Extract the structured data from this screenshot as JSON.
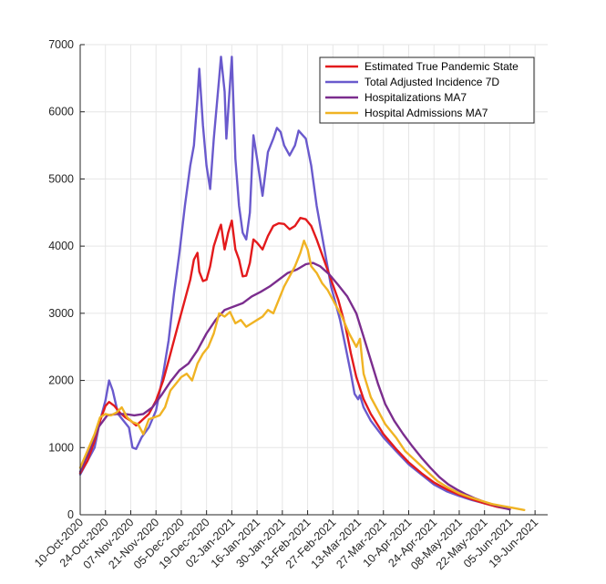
{
  "chart_data": {
    "type": "line",
    "title": "",
    "xlabel": "",
    "ylabel": "",
    "ylim": [
      0,
      7000
    ],
    "yticks": [
      0,
      1000,
      2000,
      3000,
      4000,
      5000,
      6000,
      7000
    ],
    "xlim": [
      "2020-10-10",
      "2021-06-26"
    ],
    "xticks": [
      "2020-10-10",
      "2020-10-24",
      "2020-11-07",
      "2020-11-21",
      "2020-12-05",
      "2020-12-19",
      "2021-01-02",
      "2021-01-16",
      "2021-01-30",
      "2021-02-13",
      "2021-02-27",
      "2021-03-13",
      "2021-03-27",
      "2021-04-10",
      "2021-04-24",
      "2021-05-08",
      "2021-05-22",
      "2021-06-05",
      "2021-06-19"
    ],
    "xtick_labels": [
      "10-Oct-2020",
      "24-Oct-2020",
      "07-Nov-2020",
      "21-Nov-2020",
      "05-Dec-2020",
      "19-Dec-2020",
      "02-Jan-2021",
      "16-Jan-2021",
      "30-Jan-2021",
      "13-Feb-2021",
      "27-Feb-2021",
      "13-Mar-2021",
      "27-Mar-2021",
      "10-Apr-2021",
      "24-Apr-2021",
      "08-May-2021",
      "22-May-2021",
      "05-Jun-2021",
      "19-Jun-2021"
    ],
    "grid": true,
    "legend_position": "top-right",
    "series": [
      {
        "name": "Total Adjusted Incidence 7D",
        "color": "#6a5acd",
        "points": [
          [
            "2020-10-10",
            600
          ],
          [
            "2020-10-14",
            800
          ],
          [
            "2020-10-18",
            1000
          ],
          [
            "2020-10-21",
            1400
          ],
          [
            "2020-10-24",
            1700
          ],
          [
            "2020-10-26",
            2000
          ],
          [
            "2020-10-28",
            1850
          ],
          [
            "2020-10-31",
            1500
          ],
          [
            "2020-11-03",
            1400
          ],
          [
            "2020-11-06",
            1300
          ],
          [
            "2020-11-08",
            1000
          ],
          [
            "2020-11-10",
            980
          ],
          [
            "2020-11-13",
            1150
          ],
          [
            "2020-11-17",
            1300
          ],
          [
            "2020-11-21",
            1550
          ],
          [
            "2020-11-25",
            2100
          ],
          [
            "2020-11-28",
            2600
          ],
          [
            "2020-12-01",
            3300
          ],
          [
            "2020-12-04",
            3900
          ],
          [
            "2020-12-07",
            4600
          ],
          [
            "2020-12-10",
            5200
          ],
          [
            "2020-12-12",
            5500
          ],
          [
            "2020-12-14",
            6200
          ],
          [
            "2020-12-15",
            6640
          ],
          [
            "2020-12-17",
            5800
          ],
          [
            "2020-12-19",
            5200
          ],
          [
            "2020-12-21",
            4850
          ],
          [
            "2020-12-23",
            5600
          ],
          [
            "2020-12-26",
            6500
          ],
          [
            "2020-12-27",
            6820
          ],
          [
            "2020-12-29",
            6300
          ],
          [
            "2020-12-30",
            5600
          ],
          [
            "2021-01-02",
            6820
          ],
          [
            "2021-01-04",
            5300
          ],
          [
            "2021-01-06",
            4600
          ],
          [
            "2021-01-08",
            4200
          ],
          [
            "2021-01-10",
            4100
          ],
          [
            "2021-01-12",
            4500
          ],
          [
            "2021-01-14",
            5650
          ],
          [
            "2021-01-16",
            5300
          ],
          [
            "2021-01-19",
            4750
          ],
          [
            "2021-01-22",
            5400
          ],
          [
            "2021-01-25",
            5600
          ],
          [
            "2021-01-27",
            5760
          ],
          [
            "2021-01-29",
            5700
          ],
          [
            "2021-01-31",
            5500
          ],
          [
            "2021-02-03",
            5350
          ],
          [
            "2021-02-06",
            5500
          ],
          [
            "2021-02-08",
            5720
          ],
          [
            "2021-02-12",
            5600
          ],
          [
            "2021-02-15",
            5200
          ],
          [
            "2021-02-18",
            4600
          ],
          [
            "2021-02-22",
            4000
          ],
          [
            "2021-02-26",
            3400
          ],
          [
            "2021-03-03",
            2900
          ],
          [
            "2021-03-06",
            2500
          ],
          [
            "2021-03-09",
            2100
          ],
          [
            "2021-03-11",
            1800
          ],
          [
            "2021-03-13",
            1720
          ],
          [
            "2021-03-14",
            1780
          ],
          [
            "2021-03-16",
            1600
          ],
          [
            "2021-03-20",
            1400
          ],
          [
            "2021-03-27",
            1150
          ],
          [
            "2021-04-03",
            950
          ],
          [
            "2021-04-10",
            750
          ],
          [
            "2021-04-17",
            600
          ],
          [
            "2021-04-24",
            450
          ],
          [
            "2021-05-01",
            350
          ],
          [
            "2021-05-08",
            280
          ],
          [
            "2021-05-15",
            220
          ],
          [
            "2021-05-22",
            170
          ],
          [
            "2021-05-29",
            120
          ],
          [
            "2021-06-05",
            80
          ]
        ]
      },
      {
        "name": "Estimated True Pandemic State",
        "color": "#e31a1c",
        "points": [
          [
            "2020-10-10",
            620
          ],
          [
            "2020-10-14",
            800
          ],
          [
            "2020-10-18",
            1100
          ],
          [
            "2020-10-21",
            1400
          ],
          [
            "2020-10-24",
            1620
          ],
          [
            "2020-10-26",
            1680
          ],
          [
            "2020-10-29",
            1620
          ],
          [
            "2020-11-01",
            1520
          ],
          [
            "2020-11-04",
            1450
          ],
          [
            "2020-11-07",
            1400
          ],
          [
            "2020-11-10",
            1330
          ],
          [
            "2020-11-13",
            1400
          ],
          [
            "2020-11-17",
            1500
          ],
          [
            "2020-11-21",
            1700
          ],
          [
            "2020-11-25",
            2000
          ],
          [
            "2020-11-28",
            2300
          ],
          [
            "2020-12-01",
            2600
          ],
          [
            "2020-12-04",
            2900
          ],
          [
            "2020-12-07",
            3200
          ],
          [
            "2020-12-10",
            3500
          ],
          [
            "2020-12-12",
            3800
          ],
          [
            "2020-12-14",
            3900
          ],
          [
            "2020-12-15",
            3620
          ],
          [
            "2020-12-17",
            3480
          ],
          [
            "2020-12-19",
            3500
          ],
          [
            "2020-12-21",
            3700
          ],
          [
            "2020-12-23",
            4000
          ],
          [
            "2020-12-26",
            4250
          ],
          [
            "2020-12-27",
            4320
          ],
          [
            "2020-12-29",
            3950
          ],
          [
            "2020-12-31",
            4200
          ],
          [
            "2021-01-02",
            4380
          ],
          [
            "2021-01-04",
            3950
          ],
          [
            "2021-01-06",
            3800
          ],
          [
            "2021-01-08",
            3550
          ],
          [
            "2021-01-10",
            3560
          ],
          [
            "2021-01-12",
            3750
          ],
          [
            "2021-01-14",
            4100
          ],
          [
            "2021-01-16",
            4050
          ],
          [
            "2021-01-19",
            3950
          ],
          [
            "2021-01-22",
            4150
          ],
          [
            "2021-01-25",
            4300
          ],
          [
            "2021-01-28",
            4340
          ],
          [
            "2021-01-31",
            4330
          ],
          [
            "2021-02-03",
            4250
          ],
          [
            "2021-02-06",
            4300
          ],
          [
            "2021-02-09",
            4420
          ],
          [
            "2021-02-12",
            4400
          ],
          [
            "2021-02-15",
            4300
          ],
          [
            "2021-02-18",
            4100
          ],
          [
            "2021-02-22",
            3800
          ],
          [
            "2021-02-26",
            3500
          ],
          [
            "2021-03-02",
            3200
          ],
          [
            "2021-03-06",
            2800
          ],
          [
            "2021-03-09",
            2400
          ],
          [
            "2021-03-12",
            2050
          ],
          [
            "2021-03-16",
            1720
          ],
          [
            "2021-03-20",
            1500
          ],
          [
            "2021-03-27",
            1200
          ],
          [
            "2021-04-03",
            980
          ],
          [
            "2021-04-10",
            780
          ],
          [
            "2021-04-17",
            620
          ],
          [
            "2021-04-24",
            480
          ],
          [
            "2021-05-01",
            380
          ],
          [
            "2021-05-08",
            300
          ],
          [
            "2021-05-15",
            230
          ],
          [
            "2021-05-22",
            170
          ],
          [
            "2021-05-29",
            120
          ],
          [
            "2021-06-05",
            85
          ]
        ]
      },
      {
        "name": "Hospitalizations MA7",
        "color": "#7b2d8e",
        "points": [
          [
            "2020-10-10",
            640
          ],
          [
            "2020-10-15",
            950
          ],
          [
            "2020-10-20",
            1300
          ],
          [
            "2020-10-25",
            1480
          ],
          [
            "2020-10-30",
            1500
          ],
          [
            "2020-11-04",
            1500
          ],
          [
            "2020-11-09",
            1480
          ],
          [
            "2020-11-14",
            1500
          ],
          [
            "2020-11-19",
            1600
          ],
          [
            "2020-11-24",
            1780
          ],
          [
            "2020-11-29",
            1980
          ],
          [
            "2020-12-04",
            2150
          ],
          [
            "2020-12-09",
            2250
          ],
          [
            "2020-12-14",
            2450
          ],
          [
            "2020-12-19",
            2700
          ],
          [
            "2020-12-24",
            2900
          ],
          [
            "2020-12-29",
            3050
          ],
          [
            "2021-01-03",
            3100
          ],
          [
            "2021-01-08",
            3150
          ],
          [
            "2021-01-13",
            3250
          ],
          [
            "2021-01-18",
            3320
          ],
          [
            "2021-01-23",
            3400
          ],
          [
            "2021-01-28",
            3500
          ],
          [
            "2021-02-02",
            3600
          ],
          [
            "2021-02-07",
            3650
          ],
          [
            "2021-02-12",
            3730
          ],
          [
            "2021-02-16",
            3750
          ],
          [
            "2021-02-20",
            3700
          ],
          [
            "2021-02-25",
            3580
          ],
          [
            "2021-03-02",
            3420
          ],
          [
            "2021-03-07",
            3250
          ],
          [
            "2021-03-12",
            3000
          ],
          [
            "2021-03-16",
            2650
          ],
          [
            "2021-03-20",
            2300
          ],
          [
            "2021-03-24",
            1950
          ],
          [
            "2021-03-28",
            1650
          ],
          [
            "2021-04-02",
            1400
          ],
          [
            "2021-04-07",
            1200
          ],
          [
            "2021-04-12",
            1020
          ],
          [
            "2021-04-17",
            850
          ],
          [
            "2021-04-22",
            700
          ],
          [
            "2021-04-27",
            560
          ],
          [
            "2021-05-02",
            450
          ],
          [
            "2021-05-07",
            370
          ],
          [
            "2021-05-12",
            300
          ],
          [
            "2021-05-17",
            240
          ],
          [
            "2021-05-22",
            190
          ],
          [
            "2021-05-27",
            150
          ],
          [
            "2021-06-01",
            110
          ],
          [
            "2021-06-05",
            80
          ]
        ]
      },
      {
        "name": "Hospital Admissions MA7",
        "color": "#f0b323",
        "points": [
          [
            "2020-10-10",
            700
          ],
          [
            "2020-10-14",
            950
          ],
          [
            "2020-10-18",
            1200
          ],
          [
            "2020-10-21",
            1450
          ],
          [
            "2020-10-24",
            1500
          ],
          [
            "2020-10-27",
            1480
          ],
          [
            "2020-10-30",
            1520
          ],
          [
            "2020-11-02",
            1600
          ],
          [
            "2020-11-05",
            1450
          ],
          [
            "2020-11-08",
            1380
          ],
          [
            "2020-11-11",
            1350
          ],
          [
            "2020-11-14",
            1200
          ],
          [
            "2020-11-17",
            1420
          ],
          [
            "2020-11-20",
            1450
          ],
          [
            "2020-11-23",
            1480
          ],
          [
            "2020-11-26",
            1600
          ],
          [
            "2020-11-29",
            1850
          ],
          [
            "2020-12-02",
            1950
          ],
          [
            "2020-12-05",
            2050
          ],
          [
            "2020-12-08",
            2100
          ],
          [
            "2020-12-11",
            2000
          ],
          [
            "2020-12-14",
            2250
          ],
          [
            "2020-12-17",
            2400
          ],
          [
            "2020-12-20",
            2500
          ],
          [
            "2020-12-23",
            2700
          ],
          [
            "2020-12-26",
            3000
          ],
          [
            "2020-12-29",
            2950
          ],
          [
            "2021-01-01",
            3020
          ],
          [
            "2021-01-04",
            2850
          ],
          [
            "2021-01-07",
            2900
          ],
          [
            "2021-01-10",
            2800
          ],
          [
            "2021-01-13",
            2850
          ],
          [
            "2021-01-16",
            2900
          ],
          [
            "2021-01-19",
            2950
          ],
          [
            "2021-01-22",
            3050
          ],
          [
            "2021-01-25",
            3000
          ],
          [
            "2021-01-28",
            3200
          ],
          [
            "2021-01-31",
            3400
          ],
          [
            "2021-02-03",
            3550
          ],
          [
            "2021-02-06",
            3700
          ],
          [
            "2021-02-09",
            3900
          ],
          [
            "2021-02-11",
            4080
          ],
          [
            "2021-02-13",
            3950
          ],
          [
            "2021-02-15",
            3700
          ],
          [
            "2021-02-18",
            3600
          ],
          [
            "2021-02-21",
            3450
          ],
          [
            "2021-02-24",
            3350
          ],
          [
            "2021-02-28",
            3150
          ],
          [
            "2021-03-04",
            2950
          ],
          [
            "2021-03-08",
            2700
          ],
          [
            "2021-03-12",
            2500
          ],
          [
            "2021-03-14",
            2620
          ],
          [
            "2021-03-16",
            2100
          ],
          [
            "2021-03-20",
            1750
          ],
          [
            "2021-03-24",
            1550
          ],
          [
            "2021-03-28",
            1350
          ],
          [
            "2021-04-03",
            1150
          ],
          [
            "2021-04-08",
            950
          ],
          [
            "2021-04-14",
            800
          ],
          [
            "2021-04-20",
            650
          ],
          [
            "2021-04-26",
            500
          ],
          [
            "2021-05-02",
            400
          ],
          [
            "2021-05-08",
            320
          ],
          [
            "2021-05-14",
            260
          ],
          [
            "2021-05-20",
            210
          ],
          [
            "2021-05-26",
            160
          ],
          [
            "2021-06-01",
            130
          ],
          [
            "2021-06-07",
            100
          ],
          [
            "2021-06-13",
            70
          ]
        ]
      }
    ],
    "legend_order": [
      "Estimated True Pandemic State",
      "Total Adjusted Incidence 7D",
      "Hospitalizations MA7",
      "Hospital Admissions MA7"
    ]
  }
}
